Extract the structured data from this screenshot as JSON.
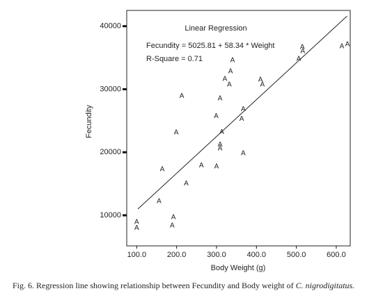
{
  "chart_data": {
    "type": "scatter",
    "title": "Linear Regression",
    "annotations": [
      "Fecundity = 5025.81 + 58.34 * Weight",
      "R-Square = 0.71"
    ],
    "xlabel": "Body Weight (g)",
    "ylabel": "Fecundity",
    "marker": "A",
    "x": [
      100,
      100,
      156,
      164,
      192,
      189,
      199,
      213,
      224,
      262,
      300,
      299,
      309,
      313,
      309,
      309,
      321,
      332,
      335,
      340,
      367,
      363,
      367,
      410,
      415,
      506,
      515,
      516,
      614,
      628
    ],
    "y": [
      8900,
      8000,
      12200,
      17300,
      9700,
      8350,
      23100,
      28900,
      15000,
      17900,
      17700,
      25700,
      28500,
      23200,
      21200,
      20600,
      31600,
      30700,
      32800,
      34600,
      26800,
      25300,
      19800,
      31500,
      30700,
      34800,
      36700,
      36000,
      36800,
      37100
    ],
    "fit_line": {
      "x": [
        103,
        627
      ],
      "y": [
        11000,
        41600
      ]
    },
    "xlim": [
      75,
      635
    ],
    "ylim": [
      5150,
      42500
    ],
    "xticks": [
      {
        "value": 100,
        "label": "100.0"
      },
      {
        "value": 200,
        "label": "200.0"
      },
      {
        "value": 300,
        "label": "300.0"
      },
      {
        "value": 400,
        "label": "400.0"
      },
      {
        "value": 500,
        "label": "500.0"
      },
      {
        "value": 600,
        "label": "600.0"
      }
    ],
    "yticks": [
      10000,
      20000,
      30000,
      40000
    ],
    "caption": "Fig. 6. Regression line showing relationship between Fecundity and Body weight of",
    "caption_species": "C. nigrodigitatus."
  }
}
